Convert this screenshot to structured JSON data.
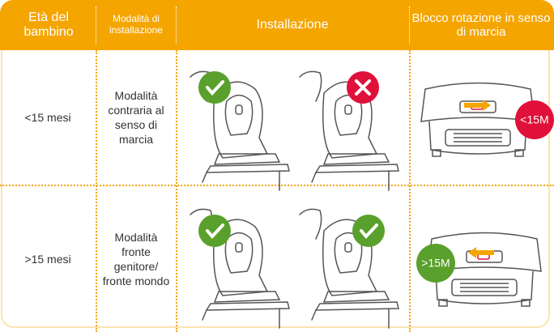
{
  "header": {
    "columns": [
      "Età del bambino",
      "Modalità di installazione",
      "Installazione",
      "Blocco rotazione in senso di marcia"
    ]
  },
  "rows": [
    {
      "age": "<15 mesi",
      "mode": "Modalità contraria al senso di marcia",
      "badge": "<15M"
    },
    {
      "age": ">15 mesi",
      "mode": "Modalità fronte genitore/ fronte mondo",
      "badge": ">15M"
    }
  ]
}
